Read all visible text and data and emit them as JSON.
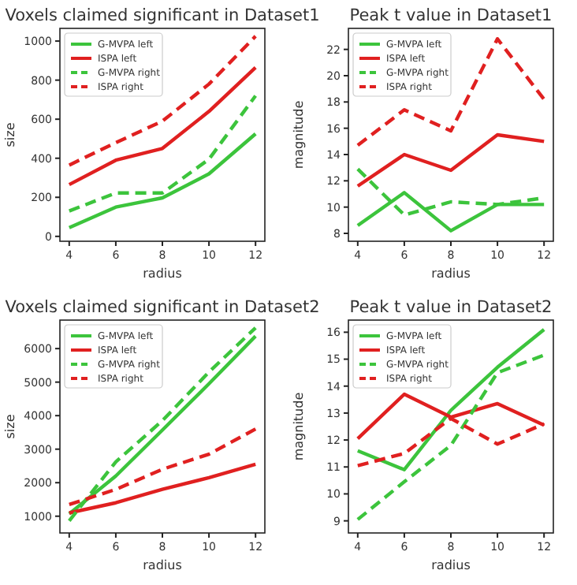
{
  "chart_data": [
    {
      "type": "line",
      "title": "Voxels claimed significant in Dataset1",
      "xlabel": "radius",
      "ylabel": "size",
      "x": [
        4,
        6,
        8,
        10,
        12
      ],
      "xlim": [
        3.6,
        12.4
      ],
      "xticks": [
        4,
        6,
        8,
        10,
        12
      ],
      "ylim": [
        -25,
        1065
      ],
      "yticks": [
        0,
        200,
        400,
        600,
        800,
        1000
      ],
      "legend": "top left",
      "series": [
        {
          "name": "G-MVPA left",
          "color": "#3cc43c",
          "line_style": "solid",
          "values": [
            45,
            150,
            197,
            320,
            525
          ]
        },
        {
          "name": "ISPA left",
          "color": "#e02020",
          "line_style": "solid",
          "values": [
            265,
            390,
            450,
            640,
            865
          ]
        },
        {
          "name": "G-MVPA right",
          "color": "#3cc43c",
          "line_style": "dashed",
          "values": [
            130,
            222,
            222,
            395,
            720
          ]
        },
        {
          "name": "ISPA right",
          "color": "#e02020",
          "line_style": "dashed",
          "values": [
            365,
            480,
            590,
            780,
            1025
          ]
        }
      ]
    },
    {
      "type": "line",
      "title": "Peak t value in Dataset1",
      "xlabel": "radius",
      "ylabel": "magnitude",
      "x": [
        4,
        6,
        8,
        10,
        12
      ],
      "xlim": [
        3.6,
        12.4
      ],
      "xticks": [
        4,
        6,
        8,
        10,
        12
      ],
      "ylim": [
        7.4,
        23.6
      ],
      "yticks": [
        8,
        10,
        12,
        14,
        16,
        18,
        20,
        22
      ],
      "legend": "top left",
      "series": [
        {
          "name": "G-MVPA left",
          "color": "#3cc43c",
          "line_style": "solid",
          "values": [
            8.6,
            11.1,
            8.2,
            10.2,
            10.2
          ]
        },
        {
          "name": "ISPA left",
          "color": "#e02020",
          "line_style": "solid",
          "values": [
            11.6,
            14.0,
            12.8,
            15.5,
            15.0
          ]
        },
        {
          "name": "G-MVPA right",
          "color": "#3cc43c",
          "line_style": "dashed",
          "values": [
            12.9,
            9.4,
            10.4,
            10.2,
            10.7
          ]
        },
        {
          "name": "ISPA right",
          "color": "#e02020",
          "line_style": "dashed",
          "values": [
            14.7,
            17.4,
            15.8,
            22.8,
            18.2
          ]
        }
      ]
    },
    {
      "type": "line",
      "title": "Voxels claimed significant in Dataset2",
      "xlabel": "radius",
      "ylabel": "size",
      "x": [
        4,
        6,
        8,
        10,
        12
      ],
      "xlim": [
        3.6,
        12.4
      ],
      "xticks": [
        4,
        6,
        8,
        10,
        12
      ],
      "ylim": [
        500,
        6850
      ],
      "yticks": [
        1000,
        2000,
        3000,
        4000,
        5000,
        6000
      ],
      "legend": "top left",
      "series": [
        {
          "name": "G-MVPA left",
          "color": "#3cc43c",
          "line_style": "solid",
          "values": [
            1070,
            2200,
            3570,
            4950,
            6370
          ]
        },
        {
          "name": "ISPA left",
          "color": "#e02020",
          "line_style": "solid",
          "values": [
            1100,
            1400,
            1800,
            2150,
            2550
          ]
        },
        {
          "name": "G-MVPA right",
          "color": "#3cc43c",
          "line_style": "dashed",
          "values": [
            860,
            2620,
            3850,
            5300,
            6620
          ]
        },
        {
          "name": "ISPA right",
          "color": "#e02020",
          "line_style": "dashed",
          "values": [
            1350,
            1800,
            2400,
            2850,
            3600
          ]
        }
      ]
    },
    {
      "type": "line",
      "title": "Peak t value in Dataset2",
      "xlabel": "radius",
      "ylabel": "magnitude",
      "x": [
        4,
        6,
        8,
        10,
        12
      ],
      "xlim": [
        3.6,
        12.4
      ],
      "xticks": [
        4,
        6,
        8,
        10,
        12
      ],
      "ylim": [
        8.55,
        16.45
      ],
      "yticks": [
        9,
        10,
        11,
        12,
        13,
        14,
        15,
        16
      ],
      "legend": "top left",
      "series": [
        {
          "name": "G-MVPA left",
          "color": "#3cc43c",
          "line_style": "solid",
          "values": [
            11.6,
            10.9,
            13.1,
            14.7,
            16.1
          ]
        },
        {
          "name": "ISPA left",
          "color": "#e02020",
          "line_style": "solid",
          "values": [
            12.05,
            13.7,
            12.85,
            13.35,
            12.55
          ]
        },
        {
          "name": "G-MVPA right",
          "color": "#3cc43c",
          "line_style": "dashed",
          "values": [
            9.05,
            10.45,
            11.8,
            14.5,
            15.15
          ]
        },
        {
          "name": "ISPA right",
          "color": "#e02020",
          "line_style": "dashed",
          "values": [
            11.05,
            11.5,
            12.8,
            11.85,
            12.6
          ]
        }
      ]
    }
  ]
}
